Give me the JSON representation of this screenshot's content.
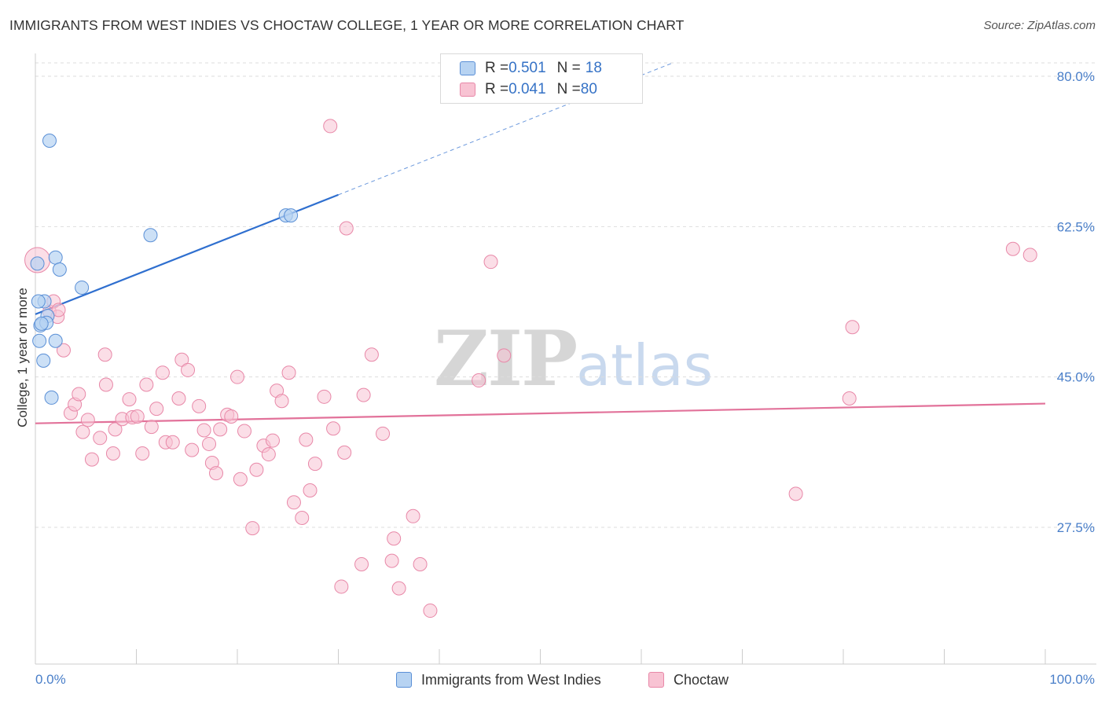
{
  "title": "IMMIGRANTS FROM WEST INDIES VS CHOCTAW COLLEGE, 1 YEAR OR MORE CORRELATION CHART",
  "source": "Source: ZipAtlas.com",
  "watermark": {
    "zip": "ZIP",
    "atlas": "atlas"
  },
  "legend": {
    "rows": [
      {
        "r_label": "R = ",
        "r_value": "0.501",
        "n_label": "N = ",
        "n_value": "18"
      },
      {
        "r_label": "R = ",
        "r_value": "0.041",
        "n_label": "N = ",
        "n_value": "80"
      }
    ]
  },
  "bottom_legend": {
    "series1": "Immigrants from West Indies",
    "series2": "Choctaw"
  },
  "colors": {
    "blue_fill": "#b7d3f2",
    "blue_stroke": "#5a8fd6",
    "blue_line": "#2f6fcf",
    "pink_fill": "#f8c3d3",
    "pink_stroke": "#e888a8",
    "pink_line": "#e2729a",
    "grid": "#dddddd",
    "tick_text": "#4a7fc9"
  },
  "chart_data": {
    "type": "scatter",
    "title": "IMMIGRANTS FROM WEST INDIES VS CHOCTAW COLLEGE, 1 YEAR OR MORE CORRELATION CHART",
    "xlabel": "",
    "ylabel": "College, 1 year or more",
    "x_tick_labels": [
      "0.0%",
      "100.0%"
    ],
    "y_tick_labels": [
      "27.5%",
      "45.0%",
      "62.5%",
      "80.0%"
    ],
    "y_ticks": [
      27.5,
      45.0,
      62.5,
      80.0
    ],
    "xlim": [
      0,
      100
    ],
    "ylim": [
      10,
      83
    ],
    "grid": true,
    "legend_position": "top-center",
    "series": [
      {
        "name": "Immigrants from West Indies",
        "color": "#5a8fd6",
        "R": 0.501,
        "N": 18,
        "trend": {
          "x": [
            0,
            30
          ],
          "y": [
            52.3,
            66.2
          ],
          "dashed_to": [
            63,
            81.5
          ]
        },
        "points": [
          {
            "x": 1.4,
            "y": 72.5
          },
          {
            "x": 0.2,
            "y": 58.2
          },
          {
            "x": 0.9,
            "y": 53.8
          },
          {
            "x": 1.2,
            "y": 52.1
          },
          {
            "x": 0.5,
            "y": 51.0
          },
          {
            "x": 1.1,
            "y": 51.3
          },
          {
            "x": 0.6,
            "y": 51.2
          },
          {
            "x": 2.0,
            "y": 58.9
          },
          {
            "x": 2.4,
            "y": 57.5
          },
          {
            "x": 4.6,
            "y": 55.4
          },
          {
            "x": 0.4,
            "y": 49.2
          },
          {
            "x": 2.0,
            "y": 49.2
          },
          {
            "x": 0.8,
            "y": 46.9
          },
          {
            "x": 1.6,
            "y": 42.6
          },
          {
            "x": 11.4,
            "y": 61.5
          },
          {
            "x": 24.8,
            "y": 63.8
          },
          {
            "x": 25.3,
            "y": 63.8
          },
          {
            "x": 0.3,
            "y": 53.8
          }
        ]
      },
      {
        "name": "Choctaw",
        "color": "#e888a8",
        "R": 0.041,
        "N": 80,
        "trend": {
          "x": [
            0,
            100
          ],
          "y": [
            39.6,
            41.9
          ]
        },
        "points": [
          {
            "x": 0.2,
            "y": 58.6
          },
          {
            "x": 1.4,
            "y": 52.6
          },
          {
            "x": 1.8,
            "y": 53.8
          },
          {
            "x": 2.2,
            "y": 52.0
          },
          {
            "x": 2.8,
            "y": 48.1
          },
          {
            "x": 3.5,
            "y": 40.8
          },
          {
            "x": 3.9,
            "y": 41.8
          },
          {
            "x": 4.3,
            "y": 43.0
          },
          {
            "x": 4.7,
            "y": 38.6
          },
          {
            "x": 5.2,
            "y": 40.0
          },
          {
            "x": 5.6,
            "y": 35.4
          },
          {
            "x": 6.4,
            "y": 37.9
          },
          {
            "x": 7.0,
            "y": 44.1
          },
          {
            "x": 7.7,
            "y": 36.1
          },
          {
            "x": 7.9,
            "y": 38.9
          },
          {
            "x": 8.6,
            "y": 40.1
          },
          {
            "x": 9.3,
            "y": 42.4
          },
          {
            "x": 9.6,
            "y": 40.3
          },
          {
            "x": 10.1,
            "y": 40.4
          },
          {
            "x": 10.6,
            "y": 36.1
          },
          {
            "x": 11.0,
            "y": 44.1
          },
          {
            "x": 11.5,
            "y": 39.2
          },
          {
            "x": 12.0,
            "y": 41.3
          },
          {
            "x": 12.6,
            "y": 45.5
          },
          {
            "x": 12.9,
            "y": 37.4
          },
          {
            "x": 13.6,
            "y": 37.4
          },
          {
            "x": 14.2,
            "y": 42.5
          },
          {
            "x": 14.5,
            "y": 47.0
          },
          {
            "x": 15.1,
            "y": 45.8
          },
          {
            "x": 15.5,
            "y": 36.5
          },
          {
            "x": 16.2,
            "y": 41.6
          },
          {
            "x": 16.7,
            "y": 38.8
          },
          {
            "x": 17.2,
            "y": 37.2
          },
          {
            "x": 17.5,
            "y": 35.0
          },
          {
            "x": 17.9,
            "y": 33.8
          },
          {
            "x": 18.3,
            "y": 38.9
          },
          {
            "x": 19.0,
            "y": 40.6
          },
          {
            "x": 19.4,
            "y": 40.4
          },
          {
            "x": 20.0,
            "y": 45.0
          },
          {
            "x": 20.3,
            "y": 33.1
          },
          {
            "x": 20.7,
            "y": 38.7
          },
          {
            "x": 21.5,
            "y": 27.4
          },
          {
            "x": 21.9,
            "y": 34.2
          },
          {
            "x": 22.6,
            "y": 37.0
          },
          {
            "x": 23.1,
            "y": 36.0
          },
          {
            "x": 23.5,
            "y": 37.6
          },
          {
            "x": 23.9,
            "y": 43.4
          },
          {
            "x": 24.4,
            "y": 42.2
          },
          {
            "x": 25.1,
            "y": 45.5
          },
          {
            "x": 25.6,
            "y": 30.4
          },
          {
            "x": 26.4,
            "y": 28.6
          },
          {
            "x": 26.8,
            "y": 37.7
          },
          {
            "x": 27.2,
            "y": 31.8
          },
          {
            "x": 27.7,
            "y": 34.9
          },
          {
            "x": 28.6,
            "y": 42.7
          },
          {
            "x": 29.2,
            "y": 74.2
          },
          {
            "x": 29.5,
            "y": 39.0
          },
          {
            "x": 30.3,
            "y": 20.6
          },
          {
            "x": 30.6,
            "y": 36.2
          },
          {
            "x": 30.8,
            "y": 62.3
          },
          {
            "x": 32.3,
            "y": 23.2
          },
          {
            "x": 32.5,
            "y": 42.9
          },
          {
            "x": 33.3,
            "y": 47.6
          },
          {
            "x": 34.4,
            "y": 38.4
          },
          {
            "x": 35.3,
            "y": 23.6
          },
          {
            "x": 35.5,
            "y": 26.2
          },
          {
            "x": 36.0,
            "y": 20.4
          },
          {
            "x": 37.4,
            "y": 28.8
          },
          {
            "x": 38.1,
            "y": 23.2
          },
          {
            "x": 39.1,
            "y": 17.8
          },
          {
            "x": 43.9,
            "y": 44.6
          },
          {
            "x": 45.1,
            "y": 58.4
          },
          {
            "x": 46.4,
            "y": 47.5
          },
          {
            "x": 75.3,
            "y": 31.4
          },
          {
            "x": 80.6,
            "y": 42.5
          },
          {
            "x": 80.9,
            "y": 50.8
          },
          {
            "x": 96.8,
            "y": 59.9
          },
          {
            "x": 98.5,
            "y": 59.2
          },
          {
            "x": 2.3,
            "y": 52.8
          },
          {
            "x": 6.9,
            "y": 47.6
          }
        ]
      }
    ]
  }
}
